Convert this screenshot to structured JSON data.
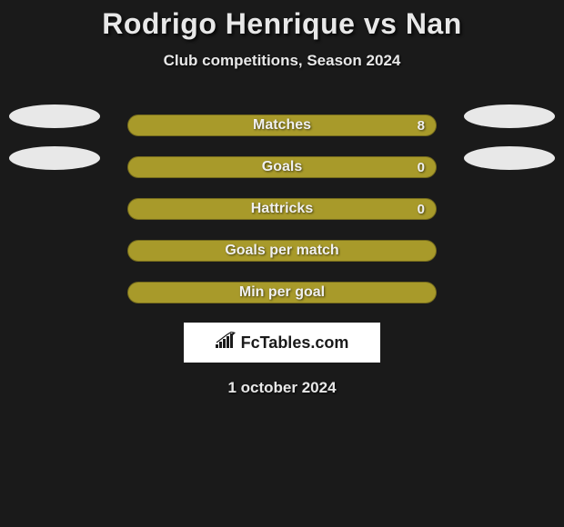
{
  "title": "Rodrigo Henrique vs Nan",
  "subtitle": "Club competitions, Season 2024",
  "bar_color": "#a89a2a",
  "ellipse_color": "#e8e8e8",
  "background_color": "#1a1a1a",
  "text_color": "#e8e8e8",
  "stats": [
    {
      "label": "Matches",
      "value": "8",
      "show_left_ellipse": true,
      "show_right_ellipse": true
    },
    {
      "label": "Goals",
      "value": "0",
      "show_left_ellipse": true,
      "show_right_ellipse": true
    },
    {
      "label": "Hattricks",
      "value": "0",
      "show_left_ellipse": false,
      "show_right_ellipse": false
    },
    {
      "label": "Goals per match",
      "value": "",
      "show_left_ellipse": false,
      "show_right_ellipse": false
    },
    {
      "label": "Min per goal",
      "value": "",
      "show_left_ellipse": false,
      "show_right_ellipse": false
    }
  ],
  "brand": "FcTables.com",
  "date": "1 october 2024"
}
